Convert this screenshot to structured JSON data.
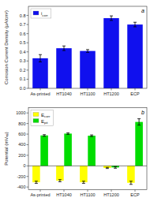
{
  "chart_data": [
    {
      "type": "bar",
      "categories": [
        "As-printed",
        "HT1040",
        "HT1100",
        "HT1200",
        "ECP"
      ],
      "series": [
        {
          "name": "icorr",
          "color": "#1010ee",
          "values": [
            0.33,
            0.44,
            0.41,
            0.77,
            0.7
          ],
          "errors": [
            0.04,
            0.025,
            0.015,
            0.025,
            0.025
          ]
        }
      ],
      "ylabel": "Corrosion Current Density (μA/cm²)",
      "ylim": [
        0,
        0.9
      ],
      "yticks": [
        {
          "value": 0,
          "label": "0.0"
        },
        0.1,
        0.2,
        0.3,
        0.4,
        0.5,
        0.6,
        0.7,
        0.8
      ],
      "legend": "upper left",
      "grid": false,
      "annotations": [
        "a"
      ]
    },
    {
      "type": "bar",
      "categories": [
        "As-printed",
        "HT1040",
        "HT1100",
        "HT1200",
        "ECP"
      ],
      "series": [
        {
          "name": "Ecorr",
          "color": "#ffff00",
          "values": [
            -310,
            -280,
            -310,
            -40,
            -320
          ],
          "errors": [
            20,
            20,
            20,
            10,
            30
          ]
        },
        {
          "name": "Epit",
          "color": "#00dd00",
          "values": [
            575,
            610,
            570,
            -30,
            830
          ],
          "errors": [
            15,
            15,
            15,
            15,
            60
          ]
        }
      ],
      "ylabel": "Potential (mVₐⱼⱼ)",
      "ylim": [
        -450,
        1100
      ],
      "yticks": [
        -400,
        -200,
        0,
        200,
        400,
        600,
        800,
        1000
      ],
      "legend": "upper left",
      "grid": false,
      "annotations": [
        "b"
      ]
    }
  ]
}
